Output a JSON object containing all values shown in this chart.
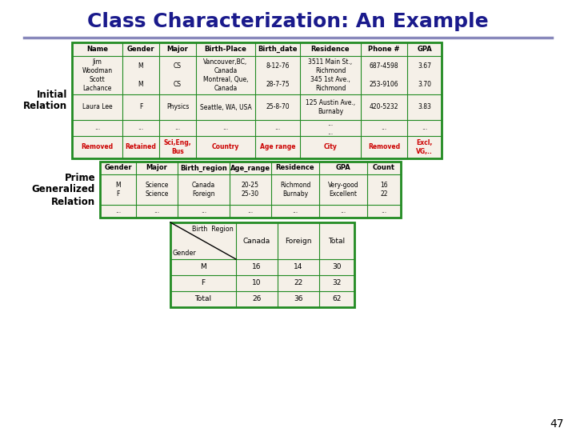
{
  "title": "Class Characterization: An Example",
  "title_color": "#1a1a8c",
  "title_fontsize": 18,
  "page_number": "47",
  "bg_color": "#ffffff",
  "divider_color": "#8888bb",
  "initial_label": "Initial\nRelation",
  "prime_label": "Prime\nGeneralized\nRelation",
  "table1_header": [
    "Name",
    "Gender",
    "Major",
    "Birth-Place",
    "Birth_date",
    "Residence",
    "Phone #",
    "GPA"
  ],
  "table1_rows": [
    [
      "Jim\nWoodman\nScott\nLachance",
      "M\n\nM",
      "CS\n\nCS",
      "Vancouver,BC,\nCanada\nMontreal, Que,\nCanada",
      "8-12-76\n\n28-7-75",
      "3511 Main St.,\nRichmond\n345 1st Ave.,\nRichmond",
      "687-4598\n\n253-9106",
      "3.67\n\n3.70"
    ],
    [
      "Laura Lee",
      "F",
      "Physics",
      "Seattle, WA, USA",
      "25-8-70",
      "125 Austin Ave.,\nBurnaby",
      "420-5232",
      "3.83"
    ],
    [
      "...",
      "...",
      "...",
      "...",
      "...",
      "...\n...",
      "...",
      "..."
    ],
    [
      "Removed",
      "Retained",
      "Sci,Eng,\nBus",
      "Country",
      "Age range",
      "City",
      "Removed",
      "Excl,\nVG,.."
    ]
  ],
  "table1_last_row_color": "#cc0000",
  "table1_border_color": "#228B22",
  "table1_bg": "#f5f0e8",
  "table2_header": [
    "Gender",
    "Major",
    "Birth_region",
    "Age_range",
    "Residence",
    "GPA",
    "Count"
  ],
  "table2_rows": [
    [
      "M\nF",
      "Science\nScience",
      "Canada\nForeign",
      "20-25\n25-30",
      "Richmond\nBurnaby",
      "Very-good\nExcellent",
      "16\n22"
    ],
    [
      "...",
      "...",
      "...",
      "...",
      "...",
      "...",
      "..."
    ]
  ],
  "table2_border_color": "#228B22",
  "table2_bg": "#f5f0e8",
  "crosstab_rows": [
    [
      "M",
      "16",
      "14",
      "30"
    ],
    [
      "F",
      "10",
      "22",
      "32"
    ],
    [
      "Total",
      "26",
      "36",
      "62"
    ]
  ],
  "crosstab_border_color": "#228B22",
  "crosstab_bg": "#f5f0e8"
}
